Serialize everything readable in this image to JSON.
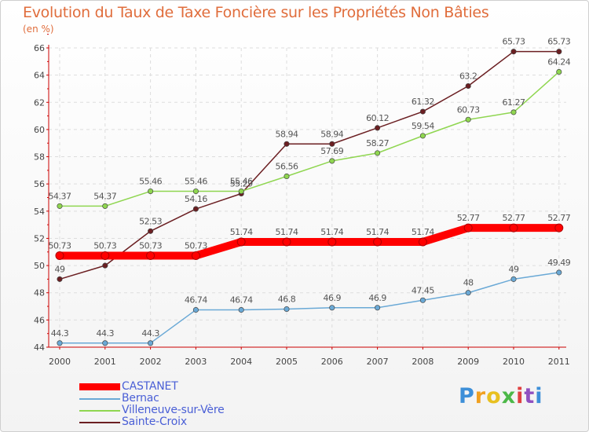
{
  "chart_data": {
    "type": "line",
    "title": "Evolution du Taux de Taxe Foncière sur les Propriétés Non Bâties",
    "ylabel": "(en %)",
    "xlabel": "",
    "ylim": [
      44,
      66
    ],
    "yticks": [
      44,
      46,
      48,
      50,
      52,
      54,
      56,
      58,
      60,
      62,
      64,
      66
    ],
    "categories": [
      "2000",
      "2001",
      "2002",
      "2003",
      "2004",
      "2005",
      "2006",
      "2007",
      "2008",
      "2009",
      "2010",
      "2011"
    ],
    "series": [
      {
        "name": "Sainte-Croix",
        "color": "#6b1f22",
        "values": [
          49,
          50,
          52.53,
          54.16,
          55.29,
          58.94,
          58.94,
          60.12,
          61.32,
          63.2,
          65.73,
          65.73
        ],
        "labels": [
          "49",
          "",
          "52.53",
          "54.16",
          "55.29",
          "58.94",
          "58.94",
          "60.12",
          "61.32",
          "63.2",
          "65.73",
          "65.73"
        ]
      },
      {
        "name": "Villeneuve-sur-Vère",
        "color": "#8fd650",
        "values": [
          54.37,
          54.37,
          55.46,
          55.46,
          55.46,
          56.56,
          57.69,
          58.27,
          59.54,
          60.73,
          61.27,
          64.24
        ],
        "labels": [
          "54.37",
          "54.37",
          "55.46",
          "55.46",
          "55.46",
          "56.56",
          "57.69",
          "58.27",
          "59.54",
          "60.73",
          "61.27",
          "64.24"
        ]
      },
      {
        "name": "Bernac",
        "color": "#6aa9d6",
        "values": [
          44.3,
          44.3,
          44.3,
          46.74,
          46.74,
          46.8,
          46.9,
          46.9,
          47.45,
          48,
          49,
          49.49
        ],
        "labels": [
          "44.3",
          "44.3",
          "44.3",
          "46.74",
          "46.74",
          "46.8",
          "46.9",
          "46.9",
          "47.45",
          "48",
          "49",
          "49.49"
        ]
      },
      {
        "name": "CASTANET",
        "color": "#ff0000",
        "values": [
          50.73,
          50.73,
          50.73,
          50.73,
          51.74,
          51.74,
          51.74,
          51.74,
          51.74,
          52.77,
          52.77,
          52.77
        ],
        "labels": [
          "50.73",
          "50.73",
          "50.73",
          "50.73",
          "51.74",
          "51.74",
          "51.74",
          "51.74",
          "51.74",
          "52.77",
          "52.77",
          "52.77"
        ]
      }
    ]
  },
  "legend": {
    "items": [
      {
        "label": "CASTANET",
        "color": "#ff0000"
      },
      {
        "label": "Bernac",
        "color": "#6aa9d6"
      },
      {
        "label": "Villeneuve-sur-Vère",
        "color": "#8fd650"
      },
      {
        "label": "Sainte-Croix",
        "color": "#6b1f22"
      }
    ]
  },
  "logo": {
    "letters": [
      "P",
      "r",
      "o",
      "x",
      "i",
      "t",
      "i"
    ],
    "colors": [
      "#3d8fd8",
      "#f0a020",
      "#e8c020",
      "#4cb848",
      "#e04040",
      "#9050c0",
      "#3d8fd8"
    ]
  }
}
